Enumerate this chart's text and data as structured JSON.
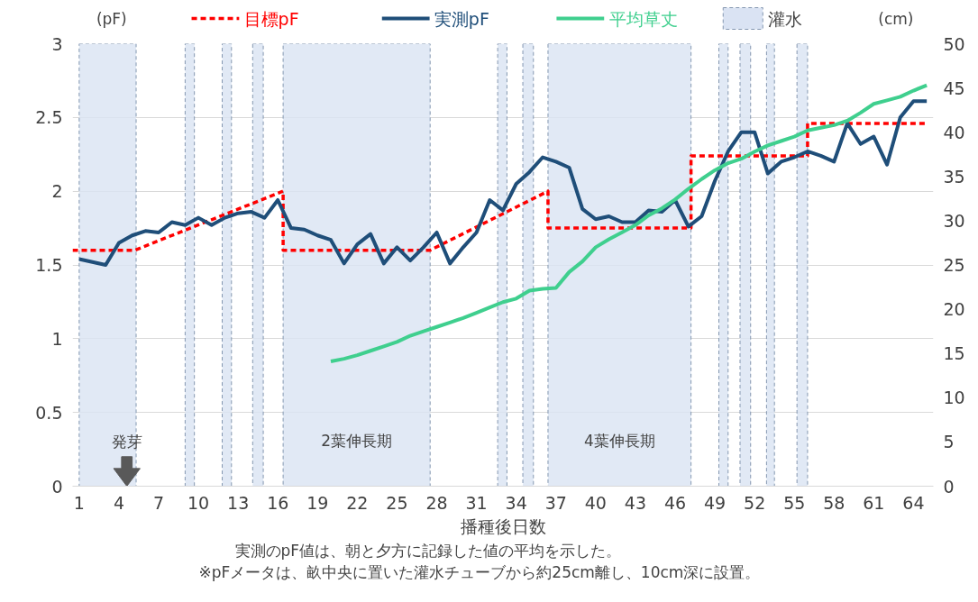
{
  "chart_data": {
    "type": "line",
    "xlabel": "播種後日数",
    "ylabel": "(pF)",
    "y2label": "(cm)",
    "xlim": [
      0.5,
      65.5
    ],
    "xticks": [
      1,
      4,
      7,
      10,
      13,
      16,
      19,
      22,
      25,
      28,
      31,
      34,
      37,
      40,
      43,
      46,
      49,
      52,
      55,
      58,
      61,
      64
    ],
    "ylim": [
      0,
      3
    ],
    "yticks": [
      0,
      0.5,
      1,
      1.5,
      2,
      2.5,
      3
    ],
    "y2lim": [
      0,
      50
    ],
    "y2ticks": [
      0,
      5,
      10,
      15,
      20,
      25,
      30,
      35,
      40,
      45,
      50
    ],
    "grid": "y",
    "legend": "top",
    "series": [
      {
        "name": "目標pF",
        "color": "#ff0000",
        "line_style": "dashed",
        "x": [
          0.5,
          5.2,
          16.4,
          16.4,
          27.5,
          36.4,
          36.4,
          47.2,
          47.2,
          56.0,
          56.0,
          65
        ],
        "values": [
          1.6,
          1.6,
          2.0,
          1.6,
          1.6,
          2.0,
          1.75,
          1.75,
          2.24,
          2.24,
          2.46,
          2.46
        ]
      },
      {
        "name": "実測pF",
        "color": "#1f4e79",
        "line_style": "solid",
        "x": [
          1,
          2,
          3,
          4,
          5,
          6,
          7,
          8,
          9,
          10,
          11,
          12,
          13,
          14,
          15,
          16,
          17,
          18,
          19,
          20,
          21,
          22,
          23,
          24,
          25,
          26,
          27,
          28,
          29,
          30,
          31,
          32,
          33,
          34,
          35,
          36,
          37,
          38,
          39,
          40,
          41,
          42,
          43,
          44,
          45,
          46,
          47,
          48,
          49,
          50,
          51,
          52,
          53,
          54,
          55,
          56,
          57,
          58,
          59,
          60,
          61,
          62,
          63,
          64,
          65
        ],
        "values": [
          1.54,
          1.52,
          1.5,
          1.65,
          1.7,
          1.73,
          1.72,
          1.79,
          1.77,
          1.82,
          1.77,
          1.82,
          1.85,
          1.86,
          1.82,
          1.94,
          1.75,
          1.74,
          1.7,
          1.67,
          1.51,
          1.64,
          1.71,
          1.51,
          1.62,
          1.53,
          1.62,
          1.72,
          1.51,
          1.62,
          1.72,
          1.94,
          1.87,
          2.05,
          2.13,
          2.23,
          2.2,
          2.16,
          1.88,
          1.81,
          1.83,
          1.79,
          1.79,
          1.87,
          1.86,
          1.94,
          1.76,
          1.83,
          2.07,
          2.27,
          2.4,
          2.4,
          2.12,
          2.2,
          2.23,
          2.27,
          2.24,
          2.2,
          2.46,
          2.32,
          2.37,
          2.18,
          2.5,
          2.61,
          2.61
        ]
      },
      {
        "name": "平均草丈",
        "color": "#3fcf8e",
        "line_style": "solid",
        "axis": "y2",
        "x": [
          20,
          21,
          22,
          23,
          24,
          25,
          26,
          27,
          28,
          29,
          30,
          31,
          32,
          33,
          34,
          35,
          36,
          37,
          38,
          39,
          40,
          41,
          42,
          43,
          44,
          45,
          46,
          47,
          48,
          49,
          50,
          51,
          52,
          53,
          54,
          55,
          56,
          57,
          58,
          59,
          60,
          61,
          62,
          63,
          64,
          65
        ],
        "values": [
          14.1,
          14.4,
          14.8,
          15.3,
          15.8,
          16.3,
          17.0,
          17.5,
          18.0,
          18.5,
          19.0,
          19.6,
          20.2,
          20.8,
          21.2,
          22.1,
          22.3,
          22.4,
          24.2,
          25.4,
          27.0,
          27.9,
          28.7,
          29.5,
          30.6,
          31.4,
          32.4,
          33.6,
          34.7,
          35.7,
          36.5,
          37.0,
          37.8,
          38.5,
          39.0,
          39.5,
          40.2,
          40.5,
          40.8,
          41.3,
          42.2,
          43.2,
          43.6,
          44.0,
          44.7,
          45.3
        ]
      }
    ],
    "bands": [
      {
        "axis": "x",
        "from": 1.0,
        "to": 5.3,
        "label": "灌水",
        "color": "#dae3f3"
      },
      {
        "axis": "x",
        "from": 9.0,
        "to": 9.7,
        "color": "#dae3f3"
      },
      {
        "axis": "x",
        "from": 11.8,
        "to": 12.5,
        "color": "#dae3f3"
      },
      {
        "axis": "x",
        "from": 14.1,
        "to": 14.9,
        "color": "#dae3f3"
      },
      {
        "axis": "x",
        "from": 16.4,
        "to": 27.5,
        "color": "#dae3f3"
      },
      {
        "axis": "x",
        "from": 32.6,
        "to": 33.3,
        "color": "#dae3f3"
      },
      {
        "axis": "x",
        "from": 34.5,
        "to": 35.3,
        "color": "#dae3f3"
      },
      {
        "axis": "x",
        "from": 36.4,
        "to": 47.2,
        "color": "#dae3f3"
      },
      {
        "axis": "x",
        "from": 49.3,
        "to": 50.0,
        "color": "#dae3f3"
      },
      {
        "axis": "x",
        "from": 50.9,
        "to": 51.7,
        "color": "#dae3f3"
      },
      {
        "axis": "x",
        "from": 52.9,
        "to": 53.5,
        "color": "#dae3f3"
      },
      {
        "axis": "x",
        "from": 55.2,
        "to": 56.0,
        "color": "#dae3f3"
      }
    ],
    "annotations": [
      {
        "text": "発芽",
        "x": 4.6,
        "y": 0
      },
      "2葉伸長期",
      "4葉伸長期",
      "※pFメータは、畝中央に置いた灌水チューブから約25cm離し、10cm深に設置。",
      "実測のpF値は、朝と夕方に記録した値の平均を示した。"
    ]
  }
}
